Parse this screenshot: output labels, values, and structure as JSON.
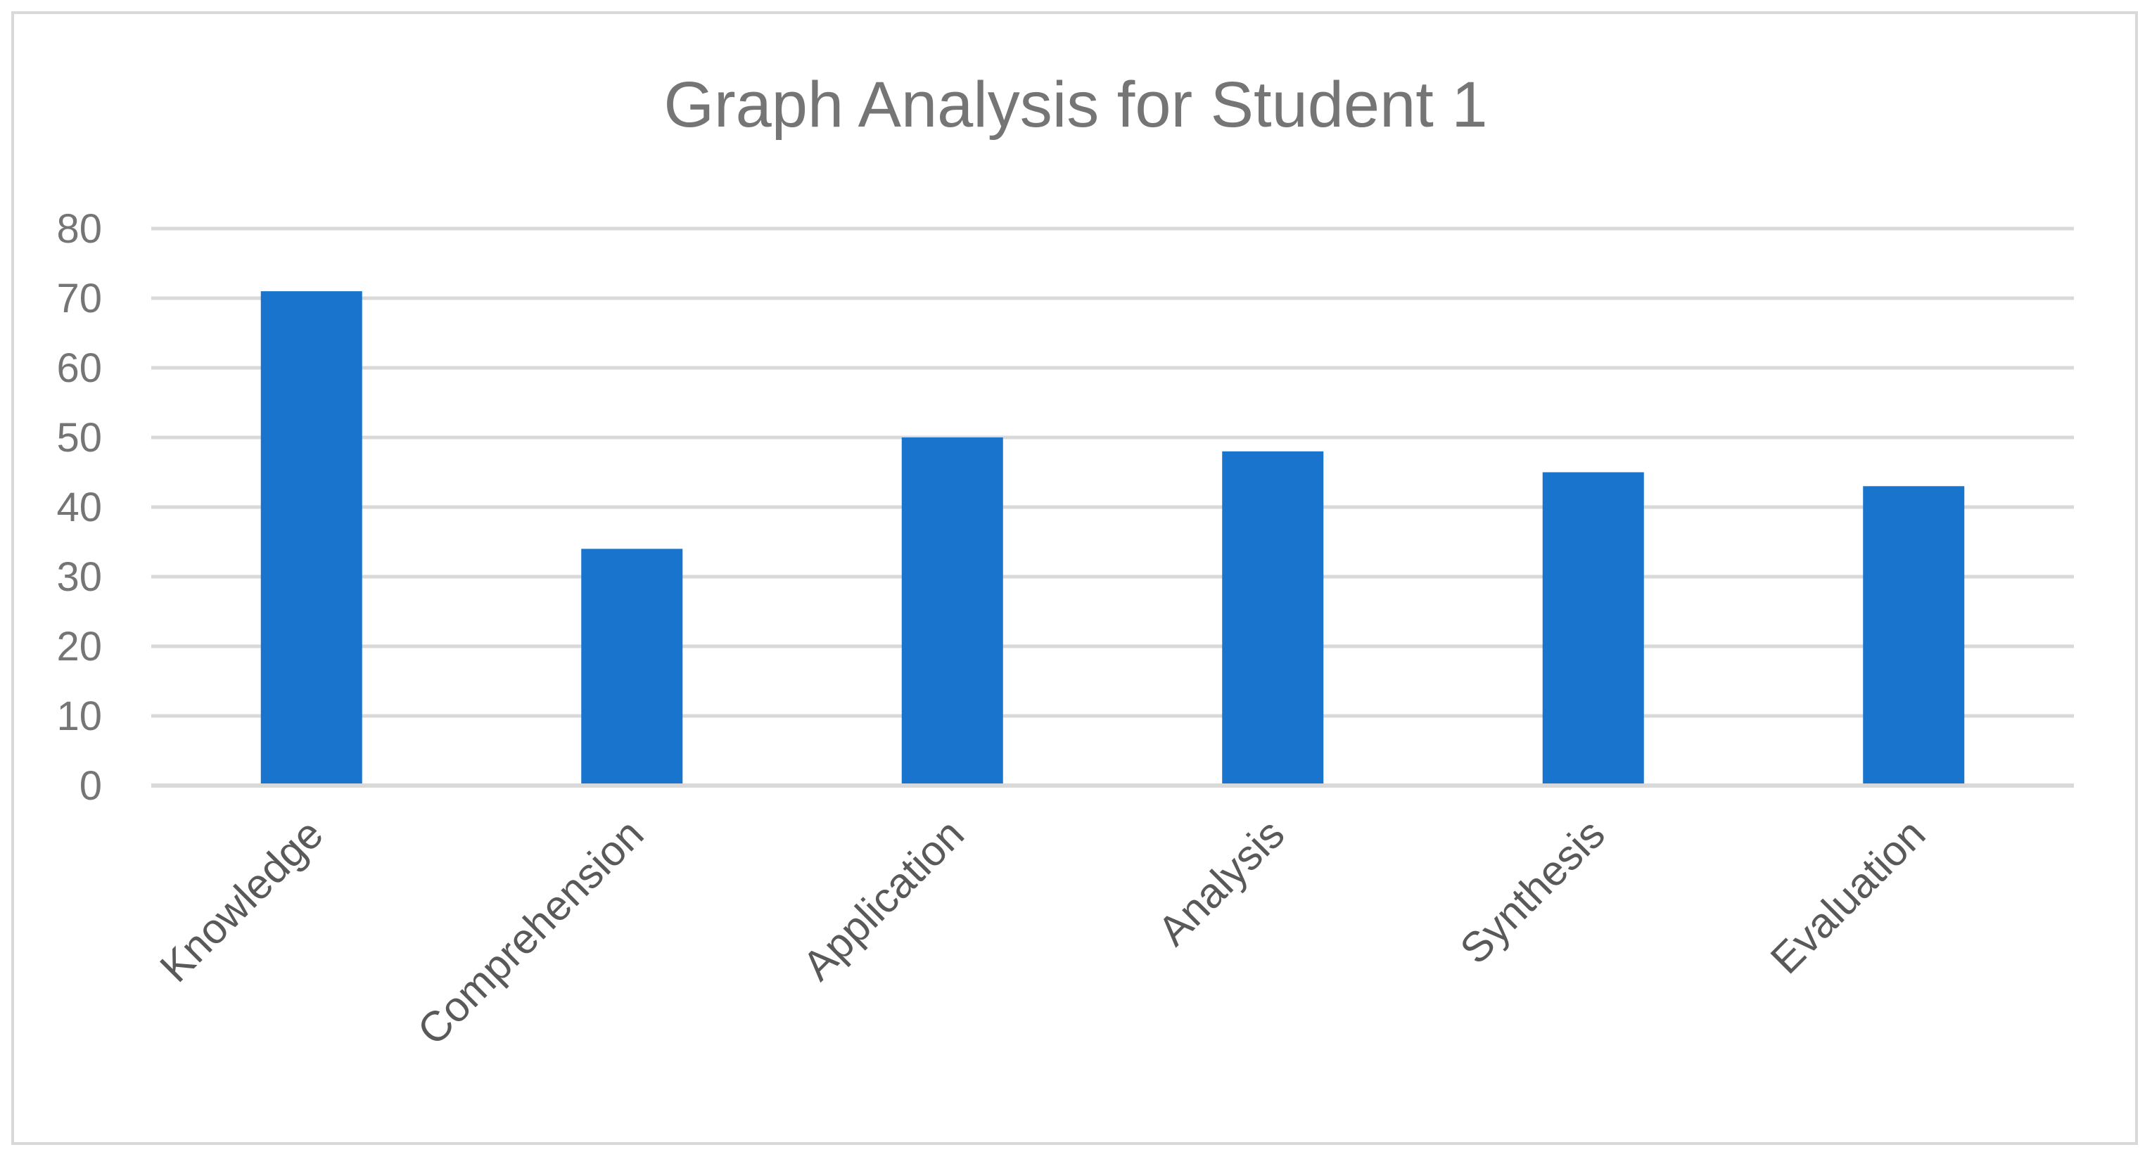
{
  "chart_data": {
    "type": "bar",
    "title": "Graph Analysis for Student 1",
    "xlabel": "",
    "ylabel": "",
    "categories": [
      "Knowledge",
      "Comprehension",
      "Application",
      "Analysis",
      "Synthesis",
      "Evaluation"
    ],
    "values": [
      71,
      34,
      50,
      48,
      45,
      43
    ],
    "ylim": [
      0,
      80
    ],
    "yticks": [
      "0",
      "10",
      "20",
      "30",
      "40",
      "50",
      "60",
      "70",
      "80"
    ],
    "grid": true,
    "legend": "none",
    "colors": {
      "bar": "#1874CD",
      "grid": "#D9D9D9",
      "axis": "#D9D9D9",
      "text": "#757575"
    }
  }
}
